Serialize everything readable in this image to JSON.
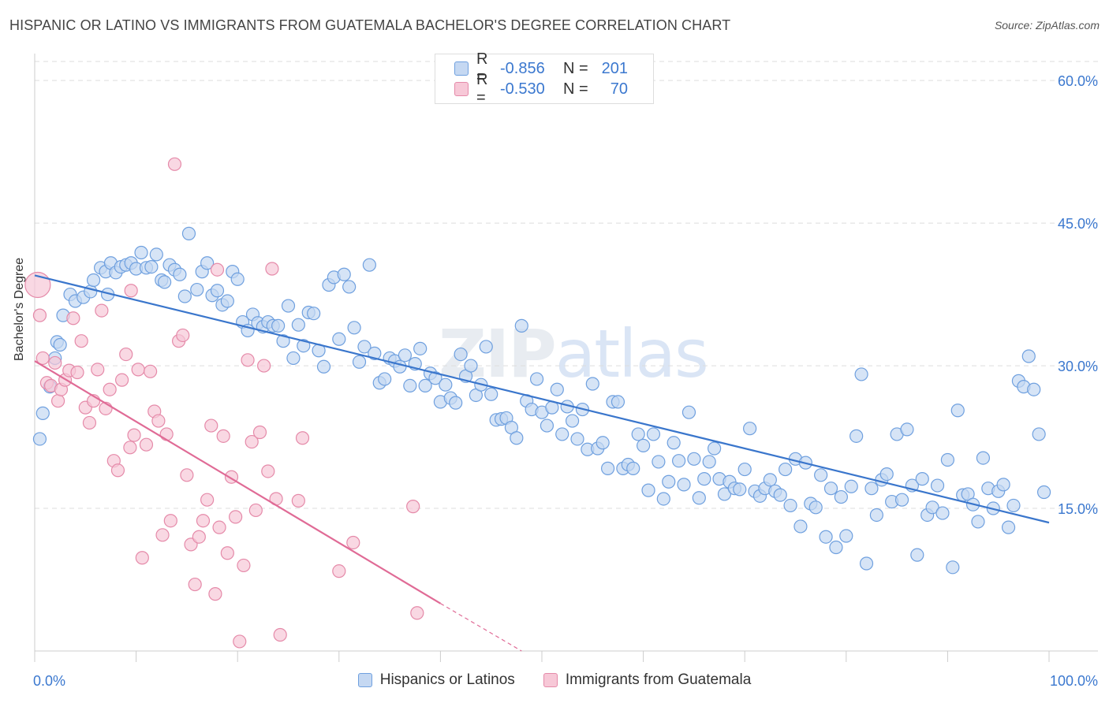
{
  "header": {
    "title": "HISPANIC OR LATINO VS IMMIGRANTS FROM GUATEMALA BACHELOR'S DEGREE CORRELATION CHART",
    "source": "Source: ZipAtlas.com"
  },
  "watermark": {
    "zip": "ZIP",
    "atlas": "atlas"
  },
  "legend_top": {
    "rows": [
      {
        "r_label": "R =",
        "r_value": "-0.856",
        "n_label": "N =",
        "n_value": "201",
        "color": "#6fa0df",
        "fill": "#c5d8f2"
      },
      {
        "r_label": "R =",
        "r_value": "-0.530",
        "n_label": "N =",
        "n_value": "70",
        "color": "#e58aa9",
        "fill": "#f7c8d7"
      }
    ]
  },
  "legend_bottom": [
    {
      "label": "Hispanics or Latinos",
      "fill": "#c5d8f2",
      "border": "#6fa0df"
    },
    {
      "label": "Immigrants from Guatemala",
      "fill": "#f7c8d7",
      "border": "#e58aa9"
    }
  ],
  "chart_data": {
    "type": "scatter",
    "title": "HISPANIC OR LATINO VS IMMIGRANTS FROM GUATEMALA BACHELOR'S DEGREE CORRELATION CHART",
    "xlabel": "",
    "ylabel": "Bachelor's Degree",
    "xlim": [
      0,
      100
    ],
    "ylim": [
      0,
      62
    ],
    "x_tick_labels": [
      "0.0%",
      "100.0%"
    ],
    "y_ticks": [
      15,
      30,
      45,
      60
    ],
    "y_tick_labels": [
      "15.0%",
      "30.0%",
      "45.0%",
      "60.0%"
    ],
    "grid": true,
    "legend_position": "top-center",
    "colors": {
      "blue": "#3a76cc",
      "blue_fill": "#c5d8f2",
      "blue_edge": "#6fa0df",
      "pink": "#e06b96",
      "pink_fill": "#f7c8d7",
      "pink_edge": "#e58aa9",
      "grid": "#dddddd",
      "tick_text": "#3b78cf"
    },
    "series": [
      {
        "name": "Hispanics or Latinos",
        "trend": {
          "x": [
            0,
            100
          ],
          "y": [
            39.5,
            13.5
          ]
        },
        "points": [
          [
            0.5,
            22.3
          ],
          [
            0.8,
            25
          ],
          [
            1.5,
            27.8
          ],
          [
            2,
            30.8
          ],
          [
            2.2,
            32.5
          ],
          [
            2.8,
            35.3
          ],
          [
            3.5,
            37.5
          ],
          [
            4,
            36.8
          ],
          [
            4.8,
            37.2
          ],
          [
            5.5,
            37.8
          ],
          [
            5.8,
            39
          ],
          [
            6.5,
            40.3
          ],
          [
            7,
            39.9
          ],
          [
            7.5,
            40.8
          ],
          [
            8,
            39.8
          ],
          [
            8.5,
            40.4
          ],
          [
            9,
            40.6
          ],
          [
            9.5,
            40.8
          ],
          [
            10,
            40.2
          ],
          [
            10.5,
            41.9
          ],
          [
            11,
            40.3
          ],
          [
            11.5,
            40.4
          ],
          [
            12,
            41.7
          ],
          [
            12.5,
            39
          ],
          [
            12.8,
            38.8
          ],
          [
            13.3,
            40.6
          ],
          [
            13.8,
            40.1
          ],
          [
            14.3,
            39.6
          ],
          [
            14.8,
            37.3
          ],
          [
            15.2,
            43.9
          ],
          [
            16,
            38
          ],
          [
            16.5,
            39.9
          ],
          [
            17,
            40.8
          ],
          [
            17.5,
            37.4
          ],
          [
            18,
            37.9
          ],
          [
            18.5,
            36.4
          ],
          [
            19,
            36.8
          ],
          [
            19.5,
            39.9
          ],
          [
            20,
            39.1
          ],
          [
            20.5,
            34.6
          ],
          [
            21,
            33.7
          ],
          [
            21.5,
            35.4
          ],
          [
            22,
            34.5
          ],
          [
            22.5,
            34.1
          ],
          [
            23,
            34.6
          ],
          [
            23.5,
            34.2
          ],
          [
            24,
            34.2
          ],
          [
            24.5,
            32.6
          ],
          [
            25,
            36.3
          ],
          [
            25.5,
            30.8
          ],
          [
            26,
            34.3
          ],
          [
            26.5,
            32.1
          ],
          [
            27,
            35.6
          ],
          [
            27.5,
            35.5
          ],
          [
            28,
            31.6
          ],
          [
            28.5,
            29.9
          ],
          [
            29,
            38.5
          ],
          [
            29.5,
            39.3
          ],
          [
            30,
            32.8
          ],
          [
            30.5,
            39.6
          ],
          [
            31,
            38.3
          ],
          [
            31.5,
            34
          ],
          [
            32,
            30.4
          ],
          [
            32.5,
            32
          ],
          [
            33,
            40.6
          ],
          [
            33.5,
            31.3
          ],
          [
            34,
            28.2
          ],
          [
            34.5,
            28.6
          ],
          [
            35,
            30.8
          ],
          [
            35.5,
            30.5
          ],
          [
            36,
            29.9
          ],
          [
            36.5,
            31.1
          ],
          [
            37,
            27.9
          ],
          [
            37.5,
            30.2
          ],
          [
            38,
            31.8
          ],
          [
            38.5,
            27.9
          ],
          [
            39,
            29.2
          ],
          [
            39.5,
            28.7
          ],
          [
            40,
            26.2
          ],
          [
            40.5,
            28
          ],
          [
            41,
            26.6
          ],
          [
            41.5,
            26.1
          ],
          [
            42,
            31.2
          ],
          [
            42.5,
            28.9
          ],
          [
            43,
            30
          ],
          [
            43.5,
            26.9
          ],
          [
            44,
            28
          ],
          [
            44.5,
            32
          ],
          [
            45,
            27
          ],
          [
            45.5,
            24.3
          ],
          [
            46,
            24.4
          ],
          [
            46.5,
            24.5
          ],
          [
            47,
            23.5
          ],
          [
            47.5,
            22.4
          ],
          [
            48,
            34.2
          ],
          [
            48.5,
            26.3
          ],
          [
            49,
            25.4
          ],
          [
            49.5,
            28.6
          ],
          [
            50,
            25.1
          ],
          [
            50.5,
            23.7
          ],
          [
            51,
            25.6
          ],
          [
            51.5,
            27.5
          ],
          [
            52,
            22.8
          ],
          [
            52.5,
            25.7
          ],
          [
            53,
            24.2
          ],
          [
            53.5,
            22.3
          ],
          [
            54,
            25.4
          ],
          [
            54.5,
            21.2
          ],
          [
            55,
            28.1
          ],
          [
            55.5,
            21.3
          ],
          [
            56,
            21.9
          ],
          [
            56.5,
            19.2
          ],
          [
            57,
            26.2
          ],
          [
            57.5,
            26.2
          ],
          [
            58,
            19.2
          ],
          [
            58.5,
            19.6
          ],
          [
            59,
            19.2
          ],
          [
            59.5,
            22.8
          ],
          [
            60,
            21.6
          ],
          [
            60.5,
            16.9
          ],
          [
            61,
            22.8
          ],
          [
            61.5,
            19.9
          ],
          [
            62,
            16
          ],
          [
            62.5,
            17.8
          ],
          [
            63,
            21.9
          ],
          [
            63.5,
            20
          ],
          [
            64,
            17.5
          ],
          [
            64.5,
            25.1
          ],
          [
            65,
            20.2
          ],
          [
            65.5,
            16.1
          ],
          [
            66,
            18.1
          ],
          [
            66.5,
            19.9
          ],
          [
            67,
            21.3
          ],
          [
            67.5,
            18.1
          ],
          [
            68,
            16.5
          ],
          [
            68.5,
            17.8
          ],
          [
            69,
            17.1
          ],
          [
            69.5,
            17
          ],
          [
            70,
            19.1
          ],
          [
            70.5,
            23.4
          ],
          [
            71,
            16.8
          ],
          [
            71.5,
            16.3
          ],
          [
            72,
            17.1
          ],
          [
            72.5,
            18
          ],
          [
            73,
            16.8
          ],
          [
            73.5,
            16.4
          ],
          [
            74,
            19.1
          ],
          [
            74.5,
            15.3
          ],
          [
            75,
            20.2
          ],
          [
            75.5,
            13.1
          ],
          [
            76,
            19.8
          ],
          [
            76.5,
            15.5
          ],
          [
            77,
            15.1
          ],
          [
            77.5,
            18.5
          ],
          [
            78,
            12
          ],
          [
            78.5,
            17.1
          ],
          [
            79,
            10.9
          ],
          [
            79.5,
            16.2
          ],
          [
            80,
            12.1
          ],
          [
            80.5,
            17.3
          ],
          [
            81,
            22.6
          ],
          [
            81.5,
            29.1
          ],
          [
            82,
            9.2
          ],
          [
            82.5,
            17.1
          ],
          [
            83,
            14.3
          ],
          [
            83.5,
            18
          ],
          [
            84,
            18.6
          ],
          [
            84.5,
            15.7
          ],
          [
            85,
            22.8
          ],
          [
            85.5,
            15.9
          ],
          [
            86,
            23.3
          ],
          [
            86.5,
            17.4
          ],
          [
            87,
            10.1
          ],
          [
            87.5,
            18.1
          ],
          [
            88,
            14.3
          ],
          [
            88.5,
            15.1
          ],
          [
            89,
            17.4
          ],
          [
            89.5,
            14.5
          ],
          [
            90,
            20.1
          ],
          [
            90.5,
            8.8
          ],
          [
            91,
            25.3
          ],
          [
            91.5,
            16.4
          ],
          [
            92,
            16.5
          ],
          [
            92.5,
            15.4
          ],
          [
            93,
            13.6
          ],
          [
            93.5,
            20.3
          ],
          [
            94,
            17.1
          ],
          [
            94.5,
            15
          ],
          [
            95,
            16.8
          ],
          [
            95.5,
            17.5
          ],
          [
            96,
            13
          ],
          [
            96.5,
            15.3
          ],
          [
            97,
            28.4
          ],
          [
            97.5,
            27.8
          ],
          [
            98,
            31
          ],
          [
            98.5,
            27.5
          ],
          [
            99,
            22.8
          ],
          [
            99.5,
            16.7
          ],
          [
            2.5,
            32.2
          ],
          [
            7.2,
            37.5
          ]
        ]
      },
      {
        "name": "Immigrants from Guatemala",
        "trend": {
          "x": [
            0,
            40
          ],
          "y": [
            30.5,
            5
          ]
        },
        "trend_dashed": {
          "x": [
            40,
            48
          ],
          "y": [
            5,
            0
          ]
        },
        "points": [
          [
            0.3,
            38.5
          ],
          [
            0.5,
            35.3
          ],
          [
            0.8,
            30.8
          ],
          [
            1.2,
            28.2
          ],
          [
            1.6,
            27.9
          ],
          [
            2,
            30.3
          ],
          [
            2.3,
            26.3
          ],
          [
            2.6,
            27.5
          ],
          [
            3,
            28.5
          ],
          [
            3.4,
            29.5
          ],
          [
            3.8,
            35
          ],
          [
            4.2,
            29.3
          ],
          [
            4.6,
            32.6
          ],
          [
            5,
            25.6
          ],
          [
            5.4,
            24
          ],
          [
            5.8,
            26.3
          ],
          [
            6.2,
            29.6
          ],
          [
            6.6,
            35.8
          ],
          [
            7,
            25.5
          ],
          [
            7.4,
            27.5
          ],
          [
            7.8,
            20
          ],
          [
            8.2,
            19
          ],
          [
            8.6,
            28.5
          ],
          [
            9,
            31.2
          ],
          [
            9.4,
            21.4
          ],
          [
            9.8,
            22.7
          ],
          [
            10.2,
            29.6
          ],
          [
            10.6,
            9.8
          ],
          [
            11,
            21.7
          ],
          [
            11.4,
            29.4
          ],
          [
            11.8,
            25.2
          ],
          [
            12.2,
            24.2
          ],
          [
            12.6,
            12.2
          ],
          [
            13,
            22.8
          ],
          [
            13.4,
            13.7
          ],
          [
            13.8,
            51.2
          ],
          [
            14.2,
            32.6
          ],
          [
            14.6,
            33.2
          ],
          [
            15,
            18.5
          ],
          [
            15.4,
            11.2
          ],
          [
            15.8,
            7
          ],
          [
            16.2,
            12
          ],
          [
            16.6,
            13.7
          ],
          [
            17,
            15.9
          ],
          [
            17.4,
            23.7
          ],
          [
            17.8,
            6
          ],
          [
            18.2,
            13
          ],
          [
            18.6,
            22.6
          ],
          [
            19,
            10.3
          ],
          [
            19.4,
            18.3
          ],
          [
            19.8,
            14.1
          ],
          [
            20.2,
            1
          ],
          [
            20.6,
            9
          ],
          [
            21,
            30.6
          ],
          [
            21.4,
            22
          ],
          [
            21.8,
            14.8
          ],
          [
            22.2,
            23
          ],
          [
            22.6,
            30
          ],
          [
            23,
            18.9
          ],
          [
            23.4,
            40.2
          ],
          [
            23.8,
            16
          ],
          [
            24.2,
            1.7
          ],
          [
            26,
            15.8
          ],
          [
            26.4,
            22.4
          ],
          [
            30,
            8.4
          ],
          [
            31.4,
            11.4
          ],
          [
            37.3,
            15.2
          ],
          [
            37.7,
            4
          ],
          [
            18,
            40.1
          ],
          [
            9.5,
            37.9
          ]
        ]
      }
    ]
  }
}
